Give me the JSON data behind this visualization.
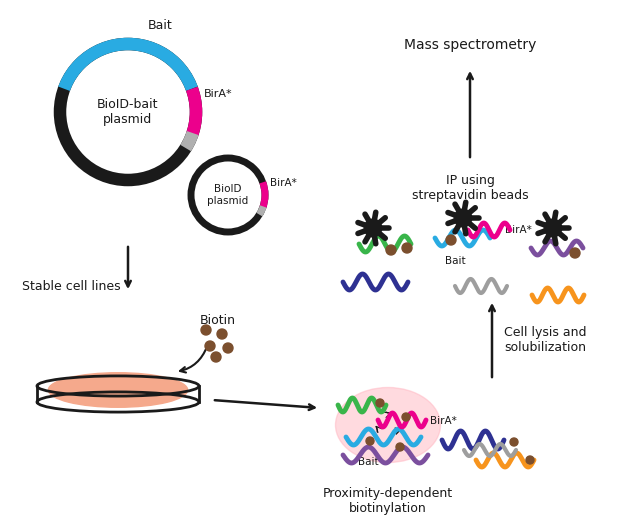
{
  "bg_color": "#ffffff",
  "text_color": "#1a1a1a",
  "colors": {
    "bait_blue": "#29ABE2",
    "bira_pink": "#EC008C",
    "black": "#1a1a1a",
    "gray_segment": "#b0b0b0",
    "green_protein": "#39B54A",
    "purple_protein": "#7B4F9E",
    "navy_protein": "#2E3192",
    "orange_protein": "#F7941D",
    "gray_protein": "#9e9e9e",
    "biotin_brown": "#7B4F2E",
    "cell_fill": "#F5A98C",
    "glow_pink": "#FFB6C1"
  },
  "labels": {
    "bait": "Bait",
    "bira": "BirA*",
    "plasmid_large": "BioID-bait\nplasmid",
    "plasmid_small": "BioID\nplasmid",
    "stable_cell": "Stable cell lines",
    "biotin": "Biotin",
    "mass_spec": "Mass spectrometry",
    "ip_beads": "IP using\nstreptavidin beads",
    "cell_lysis": "Cell lysis and\nsolubilization",
    "proximity": "Proximity-dependent\nbiotinylation"
  }
}
